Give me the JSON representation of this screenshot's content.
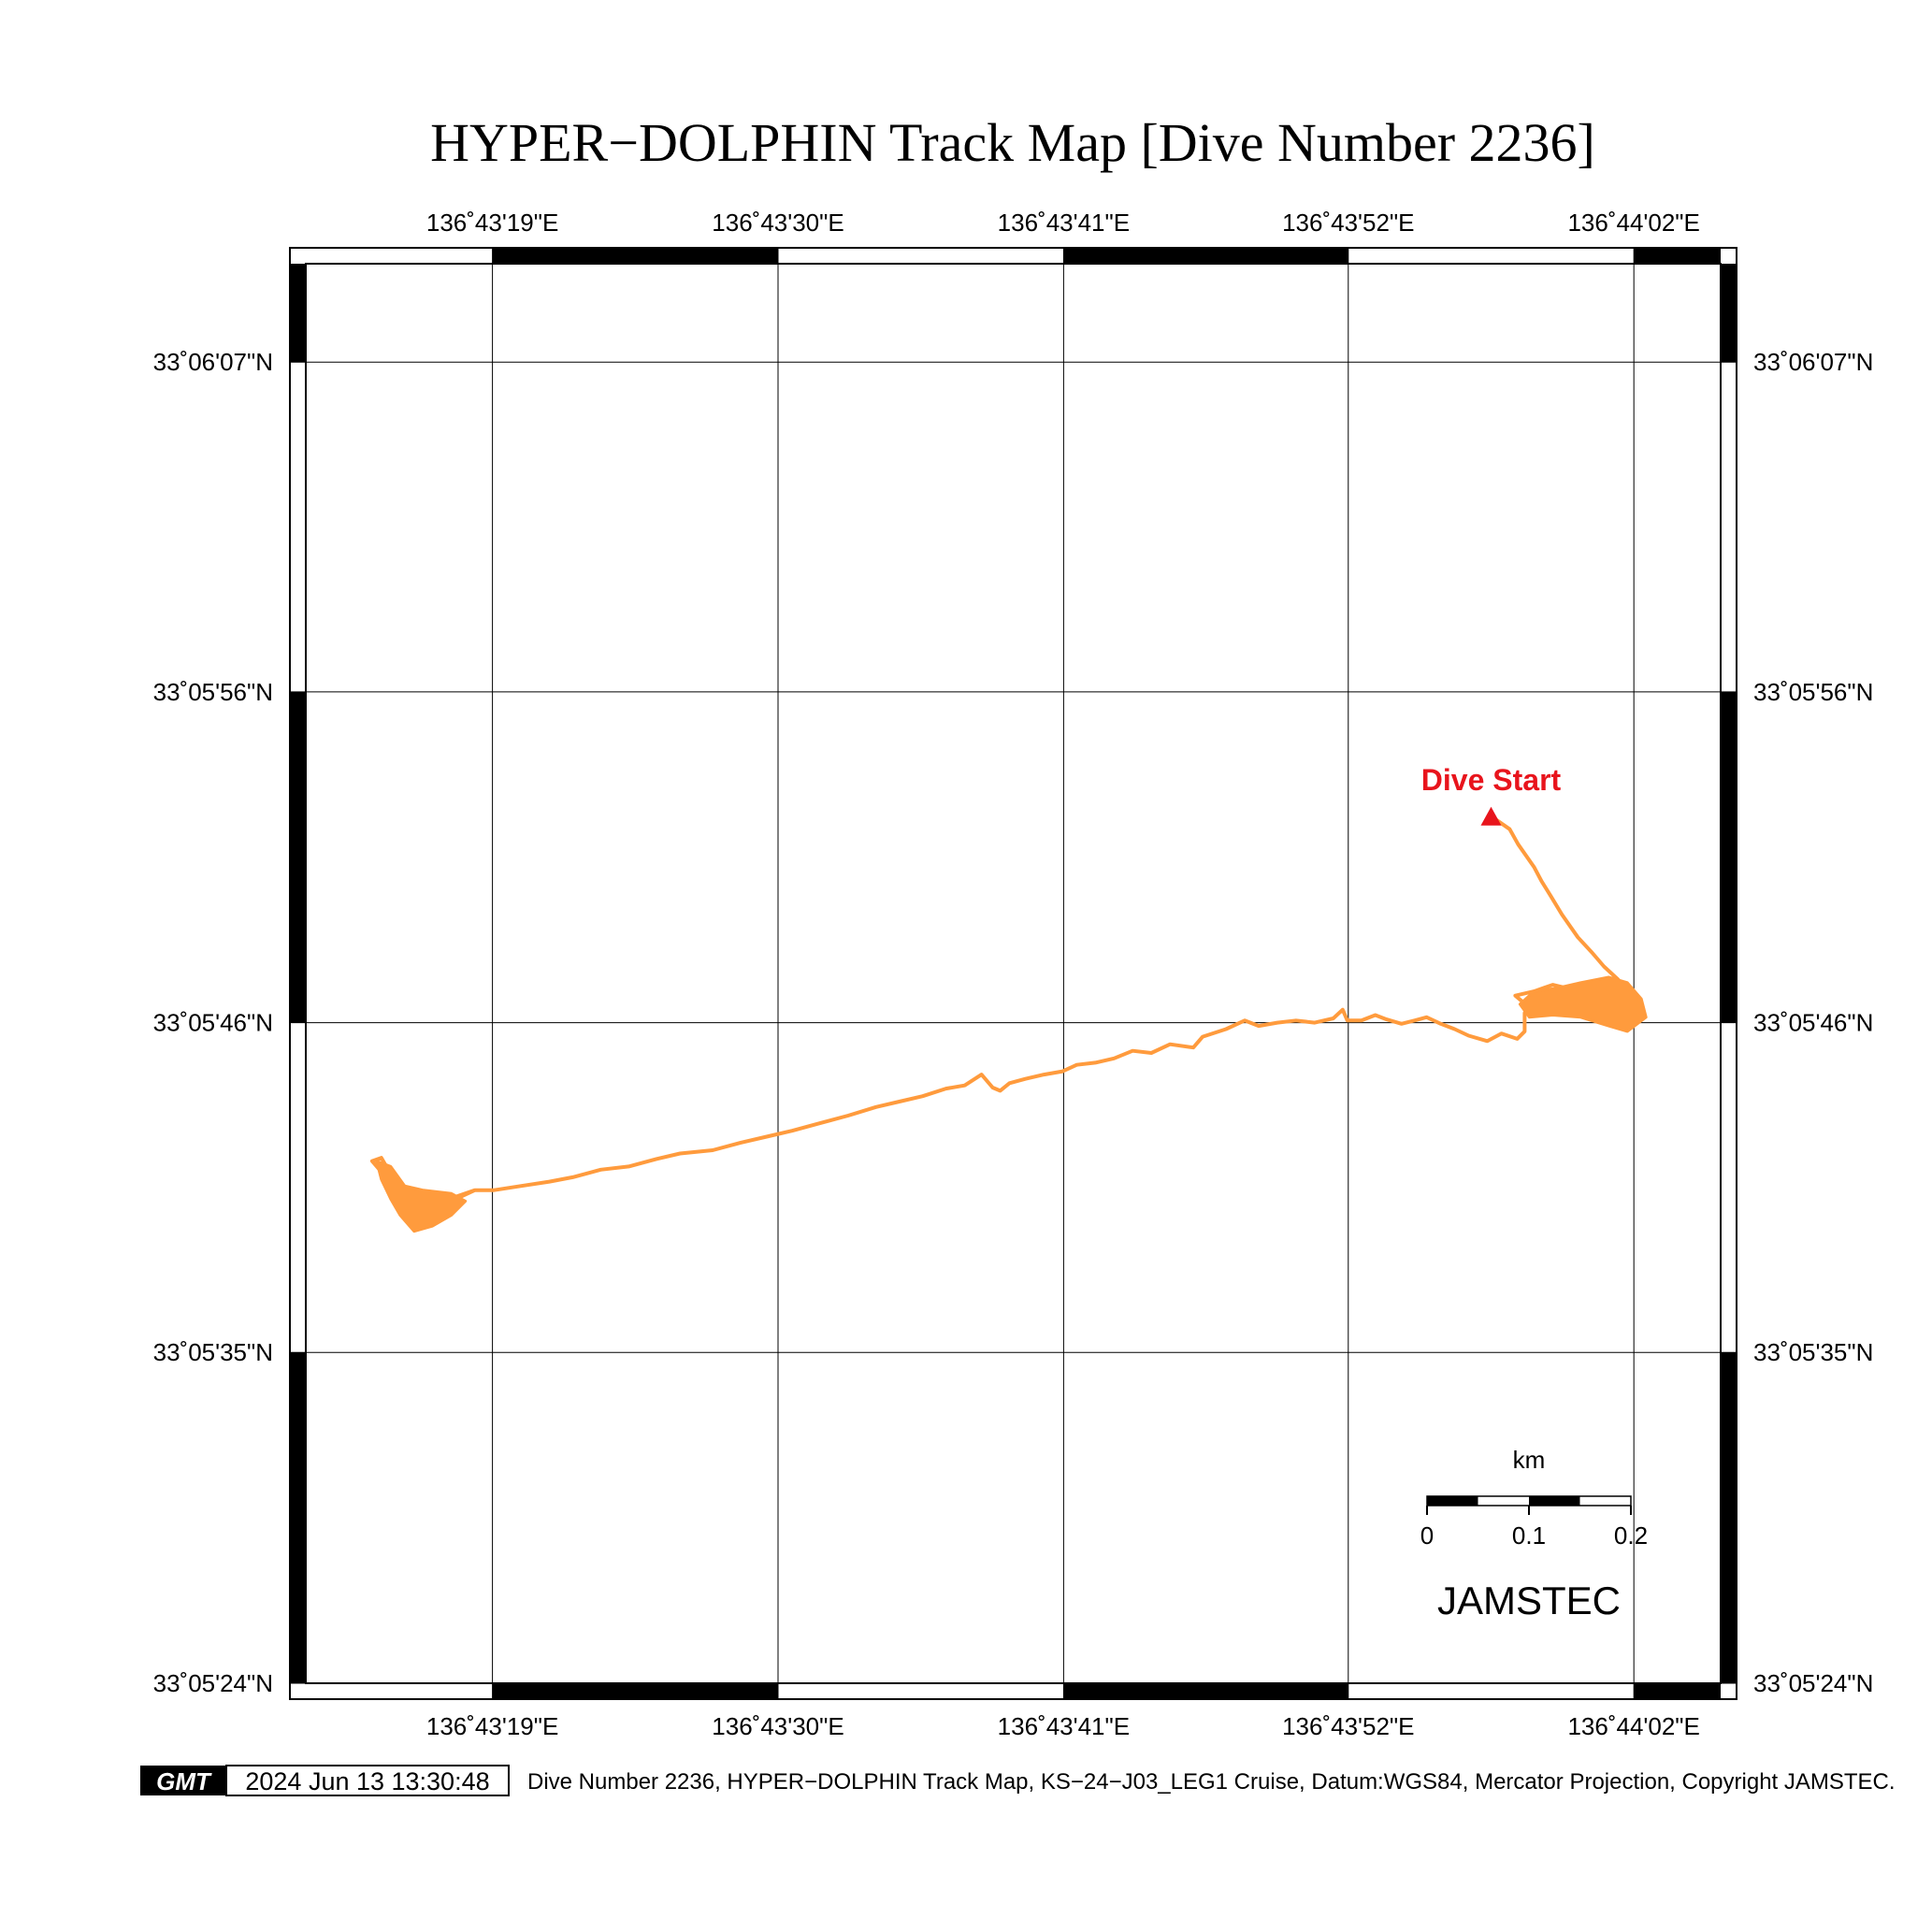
{
  "title": "HYPER−DOLPHIN Track Map [Dive Number 2236]",
  "map": {
    "lon_ticks": [
      {
        "label": "136˚43'19\"E",
        "value": 136.72194
      },
      {
        "label": "136˚43'30\"E",
        "value": 136.725
      },
      {
        "label": "136˚43'41\"E",
        "value": 136.72806
      },
      {
        "label": "136˚43'52\"E",
        "value": 136.73111
      },
      {
        "label": "136˚44'02\"E",
        "value": 136.73417
      }
    ],
    "lat_ticks": [
      {
        "label": "33˚06'07\"N",
        "value": 33.10194
      },
      {
        "label": "33˚05'56\"N",
        "value": 33.09889
      },
      {
        "label": "33˚05'46\"N",
        "value": 33.09583
      },
      {
        "label": "33˚05'35\"N",
        "value": 33.09278
      },
      {
        "label": "33˚05'24\"N",
        "value": 33.08972
      }
    ],
    "lon_range": [
      136.71994,
      136.7351
    ],
    "lat_range": [
      33.08972,
      33.10285
    ],
    "track_color": "#ff9b3d",
    "start_marker": {
      "label": "Dive Start",
      "color": "#e8141c",
      "lon": 136.73264,
      "lat": 33.09774
    },
    "scale_bar": {
      "unit": "km",
      "labels": [
        "0",
        "0.1",
        "0.2"
      ]
    },
    "organization": "JAMSTEC"
  },
  "footer": {
    "logo_text": "GMT",
    "timestamp": "2024 Jun 13 13:30:48",
    "caption": "Dive Number 2236, HYPER−DOLPHIN Track Map, KS−24−J03_LEG1 Cruise, Datum:WGS84, Mercator Projection, Copyright JAMSTEC."
  },
  "chart_data": {
    "type": "line",
    "title": "HYPER−DOLPHIN Track Map [Dive Number 2236]",
    "xlabel": "",
    "ylabel": "",
    "x_units": "longitude (deg E)",
    "y_units": "latitude (deg N)",
    "grid": true,
    "series": [
      {
        "points": [
          [
            136.73264,
            33.09774
          ],
          [
            136.73284,
            33.09762
          ],
          [
            136.73293,
            33.09748
          ],
          [
            136.7331,
            33.09727
          ],
          [
            136.73318,
            33.09714
          ],
          [
            136.73328,
            33.097
          ],
          [
            136.7334,
            33.09683
          ],
          [
            136.73357,
            33.09662
          ],
          [
            136.73372,
            33.09648
          ],
          [
            136.73385,
            33.09635
          ],
          [
            136.734,
            33.09623
          ],
          [
            136.7341,
            33.09612
          ],
          [
            136.7338,
            33.09622
          ],
          [
            136.7335,
            33.09614
          ],
          [
            136.7333,
            33.09618
          ],
          [
            136.7331,
            33.09612
          ],
          [
            136.7329,
            33.09608
          ],
          [
            136.73305,
            33.09597
          ],
          [
            136.7333,
            33.09603
          ],
          [
            136.7336,
            33.09605
          ],
          [
            136.73385,
            33.09597
          ],
          [
            136.7341,
            33.096
          ],
          [
            136.7342,
            33.0959
          ],
          [
            136.734,
            33.09587
          ],
          [
            136.7338,
            33.096
          ],
          [
            136.73345,
            33.09603
          ],
          [
            136.7331,
            33.09605
          ],
          [
            136.733,
            33.09592
          ],
          [
            136.733,
            33.09575
          ],
          [
            136.73292,
            33.09568
          ],
          [
            136.73275,
            33.09573
          ],
          [
            136.7326,
            33.09566
          ],
          [
            136.7324,
            33.09571
          ],
          [
            136.73225,
            33.09577
          ],
          [
            136.7321,
            33.09582
          ],
          [
            136.73195,
            33.09588
          ],
          [
            136.73182,
            33.09585
          ],
          [
            136.73168,
            33.09582
          ],
          [
            136.73152,
            33.09586
          ],
          [
            136.7314,
            33.0959
          ],
          [
            136.73125,
            33.09585
          ],
          [
            136.7311,
            33.09585
          ],
          [
            136.73105,
            33.09595
          ],
          [
            136.73095,
            33.09587
          ],
          [
            136.73075,
            33.09583
          ],
          [
            136.73055,
            33.09585
          ],
          [
            136.73035,
            33.09583
          ],
          [
            136.73015,
            33.0958
          ],
          [
            136.73,
            33.09585
          ],
          [
            136.7298,
            33.09577
          ],
          [
            136.72955,
            33.0957
          ],
          [
            136.72945,
            33.0956
          ],
          [
            136.7292,
            33.09563
          ],
          [
            136.729,
            33.09555
          ],
          [
            136.7288,
            33.09557
          ],
          [
            136.7286,
            33.0955
          ],
          [
            136.7284,
            33.09546
          ],
          [
            136.7282,
            33.09544
          ],
          [
            136.72805,
            33.09538
          ],
          [
            136.72785,
            33.09535
          ],
          [
            136.72765,
            33.09531
          ],
          [
            136.72748,
            33.09527
          ],
          [
            136.72738,
            33.0952
          ],
          [
            136.7273,
            33.09523
          ],
          [
            136.72718,
            33.09535
          ],
          [
            136.727,
            33.09525
          ],
          [
            136.7268,
            33.09522
          ],
          [
            136.72655,
            33.09515
          ],
          [
            136.7263,
            33.0951
          ],
          [
            136.72605,
            33.09505
          ],
          [
            136.72575,
            33.09497
          ],
          [
            136.72545,
            33.0949
          ],
          [
            136.72515,
            33.09483
          ],
          [
            136.7249,
            33.09478
          ],
          [
            136.7246,
            33.09472
          ],
          [
            136.7243,
            33.09465
          ],
          [
            136.72395,
            33.09462
          ],
          [
            136.7237,
            33.09457
          ],
          [
            136.7234,
            33.0945
          ],
          [
            136.7231,
            33.09447
          ],
          [
            136.7228,
            33.0944
          ],
          [
            136.72255,
            33.09436
          ],
          [
            136.72225,
            33.09432
          ],
          [
            136.72195,
            33.09428
          ],
          [
            136.72175,
            33.09428
          ],
          [
            136.72155,
            33.0942
          ],
          [
            136.72138,
            33.09413
          ],
          [
            136.7212,
            33.09403
          ],
          [
            136.7211,
            33.09422
          ],
          [
            136.72095,
            33.09432
          ],
          [
            136.72085,
            33.09443
          ],
          [
            136.72075,
            33.09458
          ],
          [
            136.72065,
            33.09455
          ],
          [
            136.7208,
            33.0944
          ],
          [
            136.7209,
            33.09425
          ],
          [
            136.72095,
            33.0941
          ],
          [
            136.72105,
            33.09403
          ],
          [
            136.7212,
            33.09415
          ],
          [
            136.72135,
            33.09418
          ],
          [
            136.72155,
            33.09422
          ],
          [
            136.72175,
            33.09428
          ]
        ]
      }
    ],
    "markers": [
      {
        "label": "Dive Start",
        "lon": 136.73264,
        "lat": 33.09774
      }
    ]
  }
}
